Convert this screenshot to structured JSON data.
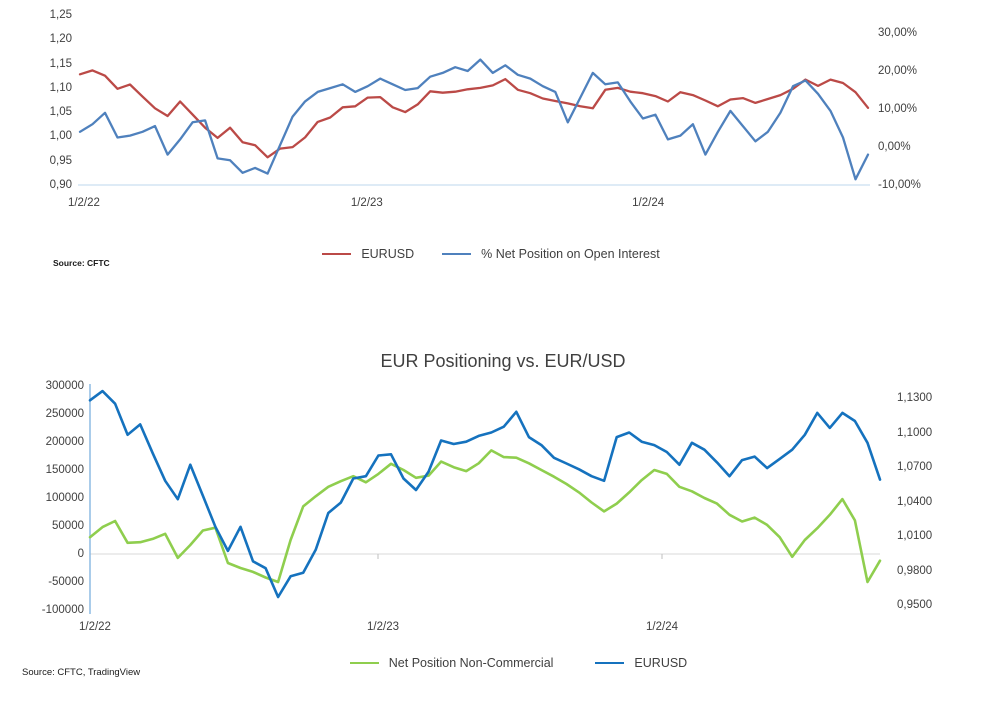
{
  "page": {
    "background": "#ffffff"
  },
  "top_chart": {
    "source_note": "Source: CFTC",
    "legend": [
      {
        "label": "EURUSD",
        "color": "#BB4A47"
      },
      {
        "label": "% Net Position on Open Interest",
        "color": "#4F81BD"
      }
    ]
  },
  "bottom_chart": {
    "title": "EUR Positioning vs. EUR/USD",
    "source_note": "Source: CFTC, TradingView",
    "legend": [
      {
        "label": "Net Position Non-Commercial",
        "color": "#8FCE4E"
      },
      {
        "label": "EURUSD",
        "color": "#1572BE"
      }
    ]
  },
  "chart_data": [
    {
      "id": "eurusd-vs-net-position-pct",
      "type": "line",
      "title": "",
      "x_tick_labels": [
        "1/2/22",
        "1/2/23",
        "1/2/24"
      ],
      "left_axis": {
        "tick_labels": [
          "1,25",
          "1,20",
          "1,15",
          "1,10",
          "1,05",
          "1,00",
          "0,95",
          "0,90"
        ],
        "min": 0.9,
        "max": 1.25
      },
      "right_axis": {
        "tick_labels": [
          "30,00%",
          "20,00%",
          "10,00%",
          "0,00%",
          "-10,00%"
        ],
        "min": -10,
        "max": 30
      },
      "grid": "baseline-only",
      "legend_position": "bottom",
      "series": [
        {
          "name": "EURUSD",
          "axis": "left",
          "color": "#BB4A47",
          "values": [
            1.128,
            1.136,
            1.125,
            1.098,
            1.107,
            1.082,
            1.058,
            1.042,
            1.072,
            1.045,
            1.018,
            0.997,
            1.018,
            0.988,
            0.982,
            0.957,
            0.975,
            0.978,
            0.998,
            1.03,
            1.039,
            1.06,
            1.062,
            1.08,
            1.081,
            1.06,
            1.05,
            1.066,
            1.093,
            1.09,
            1.092,
            1.097,
            1.1,
            1.105,
            1.118,
            1.096,
            1.089,
            1.078,
            1.073,
            1.068,
            1.062,
            1.058,
            1.096,
            1.1,
            1.092,
            1.089,
            1.083,
            1.072,
            1.091,
            1.085,
            1.074,
            1.062,
            1.076,
            1.079,
            1.069,
            1.077,
            1.085,
            1.098,
            1.117,
            1.104,
            1.117,
            1.11,
            1.091,
            1.059
          ]
        },
        {
          "name": "% Net Position on Open Interest",
          "axis": "right",
          "color": "#4F81BD",
          "values": [
            4.0,
            6.0,
            9.0,
            2.5,
            3.0,
            4.0,
            5.5,
            -2.0,
            2.0,
            6.5,
            7.0,
            -3.0,
            -3.5,
            -6.8,
            -5.5,
            -7.0,
            0.5,
            8.0,
            12.0,
            14.5,
            15.5,
            16.5,
            14.5,
            16.0,
            18.0,
            16.5,
            15.0,
            15.5,
            18.5,
            19.5,
            21.0,
            20.0,
            23.0,
            19.5,
            21.5,
            19.0,
            18.0,
            16.0,
            14.5,
            6.5,
            13.0,
            19.5,
            16.5,
            17.0,
            12.0,
            7.5,
            8.5,
            2.0,
            3.0,
            6.0,
            -2.0,
            4.0,
            9.5,
            5.5,
            1.5,
            4.0,
            9.0,
            16.0,
            17.5,
            14.0,
            9.5,
            2.5,
            -8.5,
            -2.0
          ]
        }
      ]
    },
    {
      "id": "eur-positioning-vs-eurusd",
      "type": "line",
      "title": "EUR Positioning vs. EUR/USD",
      "x_tick_labels": [
        "1/2/22",
        "1/2/23",
        "1/2/24"
      ],
      "left_axis": {
        "tick_labels": [
          "300000",
          "250000",
          "200000",
          "150000",
          "100000",
          "50000",
          "0",
          "-50000",
          "-100000"
        ],
        "min": -100000,
        "max": 300000
      },
      "right_axis": {
        "tick_labels": [
          "1,1300",
          "1,1000",
          "1,0700",
          "1,0400",
          "1,0100",
          "0,9800",
          "0,9500"
        ],
        "min": 0.95,
        "max": 1.13
      },
      "grid": "zero-line",
      "legend_position": "bottom",
      "series": [
        {
          "name": "Net Position Non-Commercial",
          "axis": "left",
          "color": "#8FCE4E",
          "values": [
            30000,
            48000,
            59000,
            20000,
            21000,
            27000,
            36000,
            -7000,
            16000,
            42000,
            47000,
            -16000,
            -25000,
            -32000,
            -42000,
            -50000,
            25000,
            85000,
            103000,
            120000,
            130000,
            139000,
            128000,
            143000,
            161000,
            150000,
            136000,
            140000,
            165000,
            155000,
            148000,
            162000,
            185000,
            173000,
            172000,
            162000,
            150000,
            138000,
            125000,
            110000,
            92000,
            76000,
            90000,
            110000,
            132000,
            150000,
            143000,
            120000,
            112000,
            100000,
            90000,
            70000,
            58000,
            65000,
            52000,
            30000,
            -5000,
            25000,
            46000,
            70000,
            98000,
            60000,
            -50000,
            -12000
          ]
        },
        {
          "name": "EURUSD",
          "axis": "right",
          "color": "#1572BE",
          "values": [
            1.128,
            1.136,
            1.125,
            1.098,
            1.107,
            1.082,
            1.058,
            1.042,
            1.072,
            1.045,
            1.018,
            0.997,
            1.018,
            0.988,
            0.982,
            0.957,
            0.975,
            0.978,
            0.998,
            1.03,
            1.039,
            1.06,
            1.062,
            1.08,
            1.081,
            1.06,
            1.05,
            1.066,
            1.093,
            1.09,
            1.092,
            1.097,
            1.1,
            1.105,
            1.118,
            1.096,
            1.089,
            1.078,
            1.073,
            1.068,
            1.062,
            1.058,
            1.096,
            1.1,
            1.092,
            1.089,
            1.083,
            1.072,
            1.091,
            1.085,
            1.074,
            1.062,
            1.076,
            1.079,
            1.069,
            1.077,
            1.085,
            1.098,
            1.117,
            1.104,
            1.117,
            1.11,
            1.091,
            1.059
          ]
        }
      ]
    }
  ]
}
